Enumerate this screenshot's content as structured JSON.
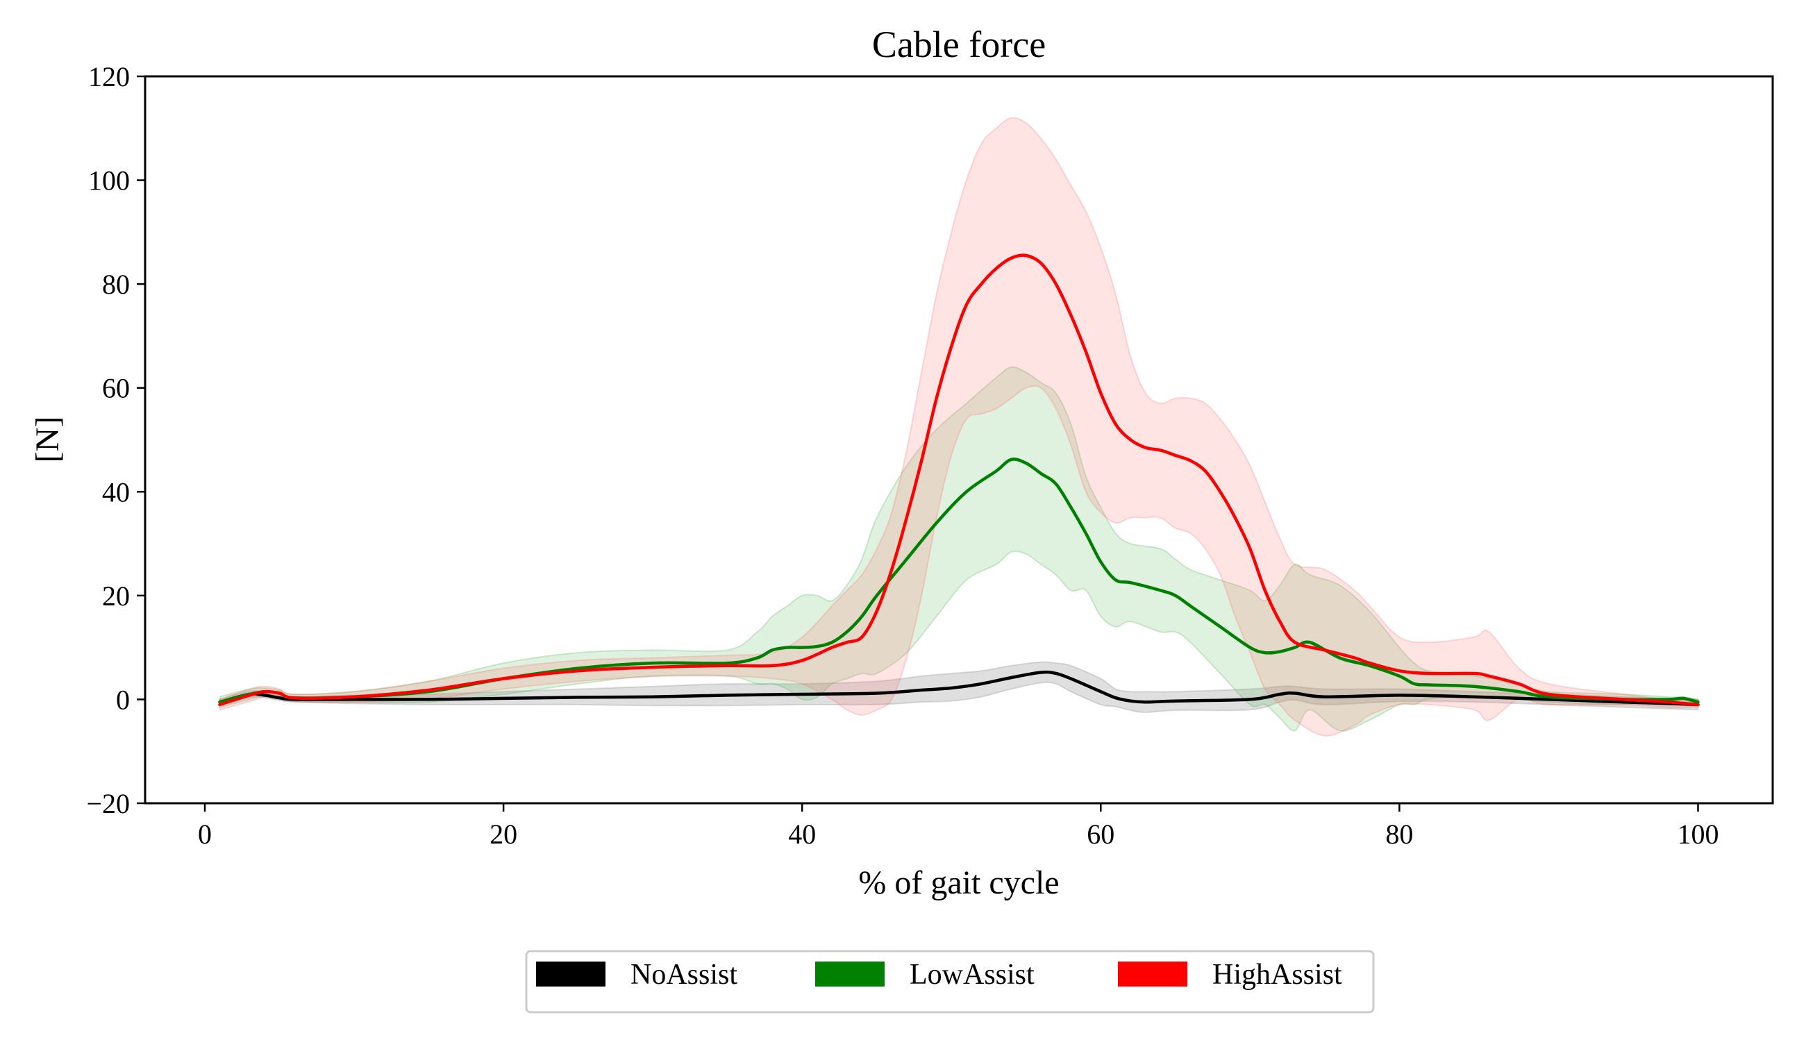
{
  "chart_data": {
    "type": "line",
    "title": "Cable force",
    "xlabel": "% of gait cycle",
    "ylabel": "[N]",
    "xlim": [
      -4,
      105
    ],
    "ylim": [
      -20,
      120
    ],
    "xticks": [
      0,
      20,
      40,
      60,
      80,
      100
    ],
    "yticks": [
      -20,
      0,
      20,
      40,
      60,
      80,
      100,
      120
    ],
    "xtick_labels": [
      "0",
      "20",
      "40",
      "60",
      "80",
      "100"
    ],
    "ytick_labels": [
      "−20",
      "0",
      "20",
      "40",
      "60",
      "80",
      "100",
      "120"
    ],
    "legend_position": "bottom-center",
    "series": [
      {
        "name": "NoAssist",
        "color": "#000000",
        "band_color": "#808080",
        "x": [
          1,
          3,
          4,
          5,
          6,
          10,
          15,
          20,
          25,
          30,
          35,
          40,
          45,
          48,
          50,
          52,
          54,
          56,
          57,
          58,
          60,
          61,
          62,
          63,
          65,
          70,
          72,
          73,
          75,
          80,
          85,
          90,
          95,
          100
        ],
        "mean": [
          -0.5,
          1,
          0.8,
          0.3,
          0,
          0,
          0,
          0.2,
          0.4,
          0.5,
          0.8,
          1,
          1.2,
          1.8,
          2.2,
          3,
          4.2,
          5.2,
          5,
          4,
          1.5,
          0.3,
          -0.3,
          -0.5,
          -0.3,
          0,
          1,
          1.2,
          0.5,
          0.8,
          0.5,
          0,
          -0.5,
          -1
        ],
        "upper": [
          0,
          1.6,
          1.3,
          0.8,
          0.5,
          0.8,
          1,
          1.5,
          2,
          2.5,
          3,
          3,
          3.5,
          4.5,
          5,
          5.5,
          6.5,
          7.2,
          7,
          6.5,
          4,
          2,
          1.5,
          1.5,
          1.5,
          2,
          2.5,
          2.5,
          2,
          2,
          1.5,
          1,
          0.5,
          0
        ],
        "lower": [
          -1,
          0.4,
          0.3,
          -0.2,
          -0.5,
          -0.8,
          -1,
          -1,
          -1,
          -1.2,
          -1.2,
          -1,
          -1,
          -0.5,
          -0.3,
          0.5,
          2,
          3.2,
          3,
          1.5,
          -1,
          -1.4,
          -2.1,
          -2.5,
          -2.1,
          -2,
          -0.5,
          -0.1,
          -1,
          -0.4,
          -0.5,
          -1,
          -1.5,
          -2
        ]
      },
      {
        "name": "LowAssist",
        "color": "#008000",
        "band_color": "#4caf50",
        "x": [
          1,
          3,
          4,
          5,
          6,
          10,
          15,
          20,
          25,
          30,
          35,
          37,
          38,
          39,
          40,
          41,
          42,
          43,
          44,
          45,
          47,
          49,
          51,
          53,
          54,
          55,
          56,
          57,
          58,
          59,
          60,
          61,
          62,
          64,
          65,
          66,
          68,
          70,
          71,
          72,
          73,
          74,
          76,
          78,
          80,
          81,
          82,
          85,
          88,
          90,
          95,
          98,
          99,
          100
        ],
        "mean": [
          -0.5,
          1,
          1.5,
          1.2,
          0.3,
          0.5,
          1.5,
          4,
          6,
          7,
          7,
          8,
          9.5,
          10,
          10,
          10.2,
          11,
          13,
          16,
          20,
          27,
          34,
          40,
          44,
          46.2,
          45.5,
          43.5,
          41.5,
          37,
          32,
          26.5,
          23,
          22.5,
          21,
          20,
          18,
          14,
          10,
          9,
          9.2,
          10,
          11,
          8,
          6.5,
          4.5,
          3,
          2.8,
          2.5,
          1.5,
          0.5,
          0,
          0,
          0.2,
          -0.5
        ],
        "upper": [
          0.5,
          2,
          2.2,
          1.8,
          1,
          1.5,
          3.5,
          7,
          9,
          9.5,
          9.5,
          13,
          16,
          18,
          20,
          20,
          19,
          22,
          27,
          35,
          45,
          52,
          57,
          62,
          64,
          63,
          61,
          59,
          53,
          43,
          37,
          32,
          30,
          29,
          27,
          25,
          23,
          21,
          19,
          22,
          26,
          24,
          22,
          17,
          10,
          7,
          5.5,
          4.5,
          3,
          1.5,
          1,
          0.5,
          0.5,
          0
        ],
        "lower": [
          -1.5,
          0,
          0.8,
          0.6,
          -0.4,
          -0.5,
          -0.5,
          1,
          3,
          4.5,
          4.5,
          3,
          3,
          2,
          0,
          0.4,
          3,
          4,
          5,
          5,
          9,
          16,
          23,
          26,
          28.4,
          28,
          26,
          24,
          21,
          21,
          16,
          14,
          15,
          13,
          13,
          11,
          5,
          -1,
          -1,
          -3.6,
          -6,
          -2,
          -6,
          -4,
          -1,
          -1,
          0.1,
          0.5,
          0,
          -0.5,
          -1,
          -0.5,
          -0.1,
          -1
        ]
      },
      {
        "name": "HighAssist",
        "color": "#ff0000",
        "band_color": "#ff6b6b",
        "x": [
          1,
          3,
          4,
          5,
          6,
          10,
          15,
          20,
          25,
          30,
          35,
          38,
          40,
          42,
          43,
          44,
          45,
          46,
          47,
          48,
          49,
          50,
          51,
          52,
          53,
          54,
          55,
          56,
          57,
          58,
          59,
          60,
          61,
          62,
          63,
          64,
          65,
          66,
          67,
          68,
          69,
          70,
          71,
          72,
          73,
          75,
          77,
          78,
          80,
          82,
          85,
          86,
          88,
          90,
          95,
          98,
          100
        ],
        "mean": [
          -1,
          0.8,
          1.5,
          1.2,
          0.3,
          0.5,
          1.8,
          4,
          5.5,
          6.2,
          6.5,
          6.5,
          7.5,
          10,
          11,
          12,
          17,
          25,
          35,
          46,
          58,
          68,
          76,
          80,
          83,
          85,
          85.5,
          84,
          80,
          74,
          67,
          59,
          53,
          50,
          48.5,
          48,
          47,
          46,
          44,
          40,
          35,
          29,
          21,
          15,
          11,
          9.5,
          8,
          7,
          5.5,
          5,
          5,
          4.5,
          3,
          1,
          0,
          -0.5,
          -1
        ],
        "upper": [
          0,
          2,
          2.5,
          2,
          1,
          1.5,
          3.5,
          6,
          7.5,
          8,
          8.5,
          9,
          12,
          18,
          21,
          24,
          29,
          36,
          48,
          63,
          78,
          90,
          100,
          107,
          110,
          112,
          111,
          108,
          104,
          99,
          94,
          87,
          78,
          66,
          59,
          57,
          58,
          58,
          57,
          54,
          50,
          45,
          38,
          31,
          26,
          25,
          21,
          18,
          12,
          11,
          12,
          13,
          6,
          3,
          1,
          0,
          -0.5
        ],
        "lower": [
          -2,
          -0.4,
          0.5,
          0.4,
          -0.4,
          -0.5,
          0.1,
          2,
          3.5,
          4.4,
          4.5,
          4,
          3,
          0,
          -2,
          -3,
          -2,
          0,
          8,
          20,
          35,
          47,
          54,
          55,
          56,
          58,
          60,
          60,
          56,
          49,
          40,
          36,
          34,
          35,
          35,
          35,
          33,
          32,
          29,
          24,
          16,
          9,
          2,
          -1,
          -4,
          -7,
          -5,
          -3,
          -1,
          -1,
          -2,
          -4,
          0,
          -1,
          -1,
          -1.5,
          -1.5
        ]
      }
    ]
  }
}
